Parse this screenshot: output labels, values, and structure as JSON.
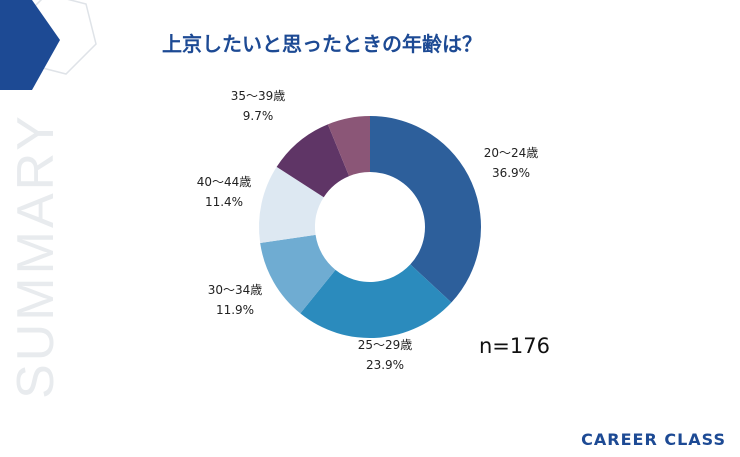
{
  "title": "上京したいと思ったときの年齢は？",
  "side_label": "SUMMARY",
  "sample_size": "n=176",
  "brand": "CAREER CLASS",
  "colors": {
    "accent": "#1d4a94",
    "hex_fill": "#1d4a94",
    "hex_outline": "#dfe3e8",
    "side_label": "#e8ebee"
  },
  "chart_data": {
    "type": "pie",
    "donut": true,
    "title": "上京したいと思ったときの年齢は？",
    "slices": [
      {
        "label": "20〜24歳",
        "value": 36.9,
        "display": "36.9%",
        "color": "#2d5f9b"
      },
      {
        "label": "25〜29歳",
        "value": 23.9,
        "display": "23.9%",
        "color": "#2b8bbd"
      },
      {
        "label": "30〜34歳",
        "value": 11.9,
        "display": "11.9%",
        "color": "#6facd2"
      },
      {
        "label": "40〜44歳",
        "value": 11.4,
        "display": "11.4%",
        "color": "#dde8f2"
      },
      {
        "label": "35〜39歳",
        "value": 9.7,
        "display": "9.7%",
        "color": "#5f3566"
      },
      {
        "label": "",
        "value": 6.2,
        "display": "",
        "color": "#8b5677"
      }
    ]
  }
}
